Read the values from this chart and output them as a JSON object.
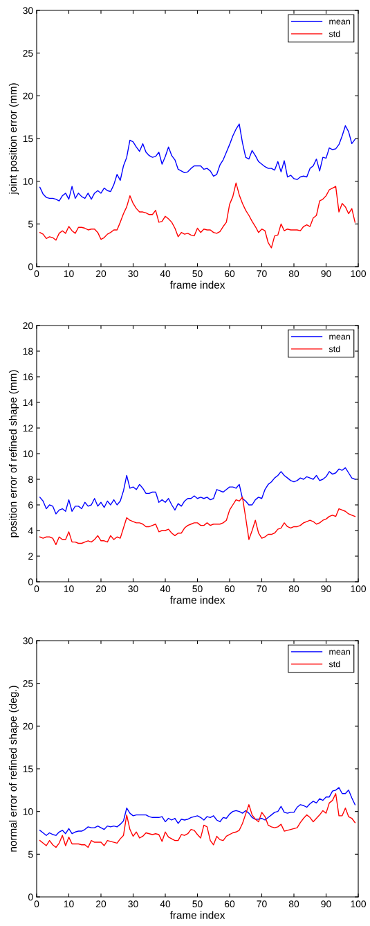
{
  "chart_data": [
    {
      "type": "line",
      "xlabel": "frame index",
      "ylabel": "joint position error (mm)",
      "xlim": [
        0,
        100
      ],
      "xticks": [
        0,
        10,
        20,
        30,
        40,
        50,
        60,
        70,
        80,
        90,
        100
      ],
      "ylim": [
        0,
        30
      ],
      "yticks": [
        0,
        5,
        10,
        15,
        20,
        25,
        30
      ],
      "legend": "top right",
      "grid": false,
      "marker": "none",
      "line_style": "solid",
      "x": [
        1,
        2,
        3,
        4,
        5,
        6,
        7,
        8,
        9,
        10,
        11,
        12,
        13,
        14,
        15,
        16,
        17,
        18,
        19,
        20,
        21,
        22,
        23,
        24,
        25,
        26,
        27,
        28,
        29,
        30,
        31,
        32,
        33,
        34,
        35,
        36,
        37,
        38,
        39,
        40,
        41,
        42,
        43,
        44,
        45,
        46,
        47,
        48,
        49,
        50,
        51,
        52,
        53,
        54,
        55,
        56,
        57,
        58,
        59,
        60,
        61,
        62,
        63,
        64,
        65,
        66,
        67,
        68,
        69,
        70,
        71,
        72,
        73,
        74,
        75,
        76,
        77,
        78,
        79,
        80,
        81,
        82,
        83,
        84,
        85,
        86,
        87,
        88,
        89,
        90,
        91,
        92,
        93,
        94,
        95,
        96,
        97,
        98,
        99
      ],
      "series": [
        {
          "name": "mean",
          "color": "#0000ff",
          "values": [
            9.3,
            8.5,
            8.1,
            8.0,
            8.0,
            7.9,
            7.7,
            8.3,
            8.6,
            7.9,
            9.4,
            8.0,
            8.6,
            8.2,
            8.0,
            8.6,
            7.9,
            8.6,
            8.9,
            8.6,
            9.2,
            8.9,
            8.8,
            9.6,
            10.8,
            10.1,
            11.8,
            12.8,
            14.8,
            14.6,
            14.0,
            13.5,
            14.4,
            13.4,
            13.0,
            12.8,
            12.9,
            13.4,
            12.0,
            12.9,
            14.0,
            13.0,
            12.5,
            11.4,
            11.2,
            11.0,
            11.1,
            11.5,
            11.8,
            11.8,
            11.8,
            11.4,
            11.5,
            11.2,
            10.6,
            10.8,
            11.9,
            12.5,
            13.4,
            14.3,
            15.3,
            16.1,
            16.7,
            14.5,
            12.8,
            12.6,
            13.6,
            13.0,
            12.3,
            12.0,
            11.7,
            11.5,
            11.5,
            11.3,
            12.3,
            11.1,
            12.4,
            10.5,
            10.7,
            10.3,
            10.2,
            10.5,
            10.6,
            10.5,
            11.5,
            11.8,
            12.6,
            11.2,
            12.8,
            12.7,
            13.9,
            13.7,
            13.8,
            14.3,
            15.3,
            16.5,
            15.8,
            14.4,
            14.9
          ]
        },
        {
          "name": "std",
          "color": "#ff0000",
          "values": [
            4.0,
            3.8,
            3.3,
            3.5,
            3.4,
            3.1,
            3.9,
            4.2,
            3.9,
            4.7,
            4.2,
            3.9,
            4.6,
            4.6,
            4.5,
            4.3,
            4.4,
            4.4,
            4.0,
            3.2,
            3.4,
            3.8,
            4.0,
            4.3,
            4.3,
            5.2,
            6.2,
            7.0,
            8.3,
            7.4,
            6.8,
            6.4,
            6.4,
            6.3,
            6.1,
            6.1,
            6.6,
            5.2,
            5.3,
            5.9,
            5.6,
            5.2,
            4.5,
            3.5,
            4.0,
            3.8,
            3.9,
            3.7,
            3.6,
            4.5,
            4.0,
            4.4,
            4.3,
            4.3,
            4.0,
            3.9,
            4.1,
            4.7,
            5.2,
            7.3,
            8.2,
            9.8,
            8.4,
            7.4,
            6.6,
            6.0,
            5.3,
            4.7,
            4.0,
            4.4,
            4.2,
            2.8,
            2.2,
            3.6,
            3.7,
            5.0,
            4.2,
            4.4,
            4.3,
            4.3,
            4.3,
            4.2,
            4.7,
            4.9,
            4.7,
            5.7,
            6.0,
            7.7,
            7.9,
            8.3,
            9.0,
            9.2,
            9.4,
            6.4,
            7.4,
            7.0,
            6.2,
            6.8,
            5.2
          ]
        }
      ]
    },
    {
      "type": "line",
      "xlabel": "frame index",
      "ylabel": "position error of refined shape (mm)",
      "xlim": [
        0,
        100
      ],
      "xticks": [
        0,
        10,
        20,
        30,
        40,
        50,
        60,
        70,
        80,
        90,
        100
      ],
      "ylim": [
        0,
        20
      ],
      "yticks": [
        0,
        2,
        4,
        6,
        8,
        10,
        12,
        14,
        16,
        18,
        20
      ],
      "legend": "top right",
      "grid": false,
      "marker": "none",
      "line_style": "solid",
      "x": [
        1,
        2,
        3,
        4,
        5,
        6,
        7,
        8,
        9,
        10,
        11,
        12,
        13,
        14,
        15,
        16,
        17,
        18,
        19,
        20,
        21,
        22,
        23,
        24,
        25,
        26,
        27,
        28,
        29,
        30,
        31,
        32,
        33,
        34,
        35,
        36,
        37,
        38,
        39,
        40,
        41,
        42,
        43,
        44,
        45,
        46,
        47,
        48,
        49,
        50,
        51,
        52,
        53,
        54,
        55,
        56,
        57,
        58,
        59,
        60,
        61,
        62,
        63,
        64,
        65,
        66,
        67,
        68,
        69,
        70,
        71,
        72,
        73,
        74,
        75,
        76,
        77,
        78,
        79,
        80,
        81,
        82,
        83,
        84,
        85,
        86,
        87,
        88,
        89,
        90,
        91,
        92,
        93,
        94,
        95,
        96,
        97,
        98,
        99
      ],
      "series": [
        {
          "name": "mean",
          "color": "#0000ff",
          "values": [
            6.6,
            6.3,
            5.7,
            6.0,
            5.9,
            5.3,
            5.6,
            5.7,
            5.5,
            6.4,
            5.5,
            5.9,
            5.9,
            5.7,
            6.2,
            5.9,
            6.0,
            6.5,
            5.9,
            6.2,
            5.8,
            6.3,
            6.0,
            6.4,
            6.0,
            6.3,
            7.1,
            8.3,
            7.3,
            7.4,
            7.2,
            7.6,
            7.3,
            6.9,
            6.9,
            7.0,
            7.0,
            6.2,
            6.4,
            6.2,
            6.5,
            6.0,
            5.6,
            6.1,
            5.9,
            6.3,
            6.5,
            6.5,
            6.7,
            6.5,
            6.6,
            6.5,
            6.6,
            6.4,
            6.5,
            7.2,
            7.1,
            7.0,
            7.2,
            7.4,
            7.4,
            7.3,
            7.6,
            6.5,
            6.3,
            6.0,
            6.0,
            6.4,
            6.6,
            6.5,
            7.2,
            7.6,
            7.8,
            8.1,
            8.3,
            8.6,
            8.3,
            8.1,
            7.9,
            7.8,
            7.9,
            8.1,
            8.0,
            8.2,
            8.1,
            8.0,
            8.3,
            7.9,
            8.0,
            8.2,
            8.6,
            8.4,
            8.5,
            8.8,
            8.7,
            8.9,
            8.5,
            8.1,
            8.0
          ]
        },
        {
          "name": "std",
          "color": "#ff0000",
          "values": [
            3.5,
            3.4,
            3.5,
            3.5,
            3.4,
            2.9,
            3.5,
            3.3,
            3.3,
            3.9,
            3.1,
            3.1,
            3.0,
            3.0,
            3.1,
            3.2,
            3.1,
            3.3,
            3.6,
            3.2,
            3.2,
            3.1,
            3.6,
            3.3,
            3.5,
            3.4,
            4.2,
            5.0,
            4.8,
            4.7,
            4.6,
            4.6,
            4.5,
            4.3,
            4.3,
            4.4,
            4.5,
            3.9,
            4.0,
            4.0,
            4.1,
            3.8,
            3.6,
            3.8,
            3.8,
            4.2,
            4.4,
            4.5,
            4.6,
            4.6,
            4.4,
            4.4,
            4.6,
            4.4,
            4.5,
            4.5,
            4.5,
            4.6,
            4.8,
            5.6,
            6.0,
            6.4,
            6.3,
            6.6,
            5.0,
            3.3,
            4.0,
            4.8,
            3.8,
            3.4,
            3.5,
            3.7,
            3.7,
            3.8,
            4.1,
            4.2,
            4.6,
            4.3,
            4.2,
            4.3,
            4.3,
            4.4,
            4.6,
            4.7,
            4.8,
            4.7,
            4.5,
            4.6,
            4.8,
            4.9,
            5.1,
            5.2,
            5.1,
            5.7,
            5.6,
            5.5,
            5.3,
            5.2,
            5.1
          ]
        }
      ]
    },
    {
      "type": "line",
      "xlabel": "frame index",
      "ylabel": "normal error of refined shape (deg.)",
      "xlim": [
        0,
        100
      ],
      "xticks": [
        0,
        10,
        20,
        30,
        40,
        50,
        60,
        70,
        80,
        90,
        100
      ],
      "ylim": [
        0,
        30
      ],
      "yticks": [
        0,
        5,
        10,
        15,
        20,
        25,
        30
      ],
      "legend": "top right",
      "grid": false,
      "marker": "none",
      "line_style": "solid",
      "x": [
        1,
        2,
        3,
        4,
        5,
        6,
        7,
        8,
        9,
        10,
        11,
        12,
        13,
        14,
        15,
        16,
        17,
        18,
        19,
        20,
        21,
        22,
        23,
        24,
        25,
        26,
        27,
        28,
        29,
        30,
        31,
        32,
        33,
        34,
        35,
        36,
        37,
        38,
        39,
        40,
        41,
        42,
        43,
        44,
        45,
        46,
        47,
        48,
        49,
        50,
        51,
        52,
        53,
        54,
        55,
        56,
        57,
        58,
        59,
        60,
        61,
        62,
        63,
        64,
        65,
        66,
        67,
        68,
        69,
        70,
        71,
        72,
        73,
        74,
        75,
        76,
        77,
        78,
        79,
        80,
        81,
        82,
        83,
        84,
        85,
        86,
        87,
        88,
        89,
        90,
        91,
        92,
        93,
        94,
        95,
        96,
        97,
        98,
        99
      ],
      "series": [
        {
          "name": "mean",
          "color": "#0000ff",
          "values": [
            7.8,
            7.5,
            7.2,
            7.5,
            7.3,
            7.2,
            7.6,
            7.8,
            7.4,
            8.0,
            7.4,
            7.6,
            7.7,
            7.7,
            7.9,
            8.2,
            8.1,
            8.1,
            8.3,
            8.1,
            7.9,
            8.3,
            8.2,
            8.3,
            8.2,
            8.5,
            8.9,
            10.4,
            9.8,
            9.5,
            9.6,
            9.6,
            9.6,
            9.6,
            9.4,
            9.3,
            9.3,
            9.3,
            9.4,
            8.8,
            9.2,
            9.0,
            9.2,
            8.6,
            9.1,
            9.0,
            9.1,
            9.3,
            9.4,
            9.5,
            9.3,
            9.0,
            9.4,
            9.3,
            9.5,
            9.0,
            8.8,
            9.3,
            9.2,
            9.7,
            10.0,
            10.1,
            10.0,
            9.8,
            10.1,
            9.8,
            9.3,
            9.1,
            9.1,
            9.2,
            9.0,
            9.3,
            9.6,
            9.9,
            10.0,
            10.6,
            9.9,
            9.8,
            9.9,
            9.9,
            10.5,
            10.8,
            10.7,
            10.5,
            10.9,
            11.2,
            11.0,
            11.5,
            11.3,
            11.7,
            11.7,
            12.4,
            12.5,
            12.8,
            12.1,
            12.1,
            12.5,
            11.6,
            10.8
          ]
        },
        {
          "name": "std",
          "color": "#ff0000",
          "values": [
            6.6,
            6.3,
            6.0,
            6.6,
            6.1,
            5.8,
            6.3,
            7.2,
            6.0,
            7.0,
            6.2,
            6.2,
            6.2,
            6.1,
            6.1,
            5.8,
            6.6,
            6.4,
            6.4,
            6.4,
            6.0,
            6.6,
            6.5,
            6.4,
            6.3,
            6.8,
            7.2,
            9.6,
            7.9,
            7.1,
            7.6,
            6.9,
            7.1,
            7.5,
            7.4,
            7.3,
            7.4,
            7.3,
            6.5,
            7.6,
            7.0,
            6.8,
            6.6,
            6.6,
            7.3,
            7.2,
            7.4,
            7.9,
            7.8,
            7.3,
            6.9,
            8.4,
            8.2,
            6.6,
            6.1,
            7.1,
            6.7,
            6.6,
            7.1,
            7.3,
            7.5,
            7.6,
            7.8,
            8.6,
            9.7,
            10.8,
            9.6,
            9.1,
            8.8,
            9.9,
            9.4,
            8.4,
            8.2,
            8.1,
            8.2,
            8.5,
            7.7,
            7.8,
            7.9,
            8.0,
            8.1,
            8.7,
            9.2,
            9.6,
            9.3,
            8.8,
            9.2,
            9.6,
            10.1,
            9.8,
            11.0,
            11.3,
            12.1,
            9.5,
            9.5,
            10.4,
            9.4,
            9.2,
            8.7
          ]
        }
      ]
    }
  ]
}
